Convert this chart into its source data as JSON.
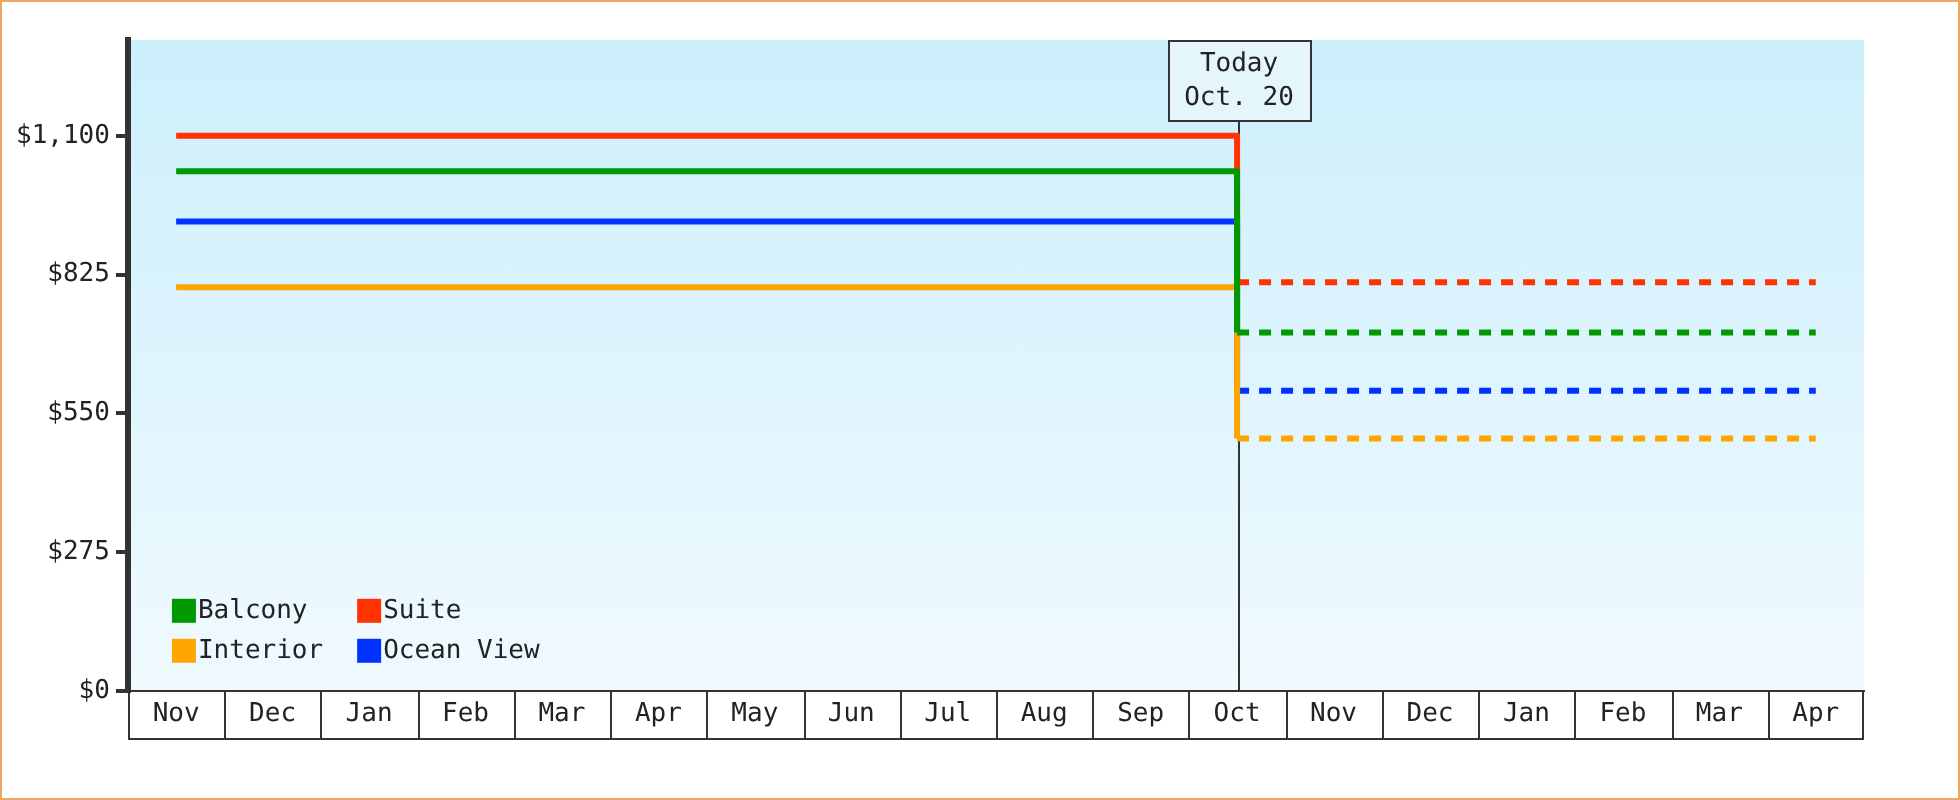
{
  "chart_data": {
    "type": "step",
    "legend": "bottom left",
    "grid": false,
    "categories": [
      "Nov",
      "Dec",
      "Jan",
      "Feb",
      "Mar",
      "Apr",
      "May",
      "Jun",
      "Jul",
      "Aug",
      "Sep",
      "Oct",
      "Nov",
      "Dec",
      "Jan",
      "Feb",
      "Mar",
      "Apr"
    ],
    "ylim": [
      0,
      1290
    ],
    "yticks": [
      {
        "value": 0,
        "label": "$0"
      },
      {
        "value": 275,
        "label": "$275"
      },
      {
        "value": 550,
        "label": "$550"
      },
      {
        "value": 825,
        "label": "$825"
      },
      {
        "value": 1100,
        "label": "$1,100"
      }
    ],
    "ref_lines": [
      {
        "axis": "x",
        "value": "Oct",
        "label": "Today\nOct. 20"
      }
    ],
    "series": [
      {
        "name": "Balcony",
        "color": "#009900",
        "values": [
          1030,
          1030,
          1030,
          1030,
          1030,
          1030,
          1030,
          1030,
          1030,
          1030,
          1030,
          710,
          710,
          710,
          710,
          710,
          710,
          710
        ]
      },
      {
        "name": "Suite",
        "color": "#ff3300",
        "values": [
          1100,
          1100,
          1100,
          1100,
          1100,
          1100,
          1100,
          1100,
          1100,
          1100,
          1100,
          810,
          810,
          810,
          810,
          810,
          810,
          810
        ]
      },
      {
        "name": "Interior",
        "color": "#ffa500",
        "values": [
          800,
          800,
          800,
          800,
          800,
          800,
          800,
          800,
          800,
          800,
          800,
          500,
          500,
          500,
          500,
          500,
          500,
          500
        ]
      },
      {
        "name": "Ocean View",
        "color": "#0033ff",
        "values": [
          930,
          930,
          930,
          930,
          930,
          930,
          930,
          930,
          930,
          930,
          930,
          595,
          595,
          595,
          595,
          595,
          595,
          595
        ]
      }
    ]
  }
}
